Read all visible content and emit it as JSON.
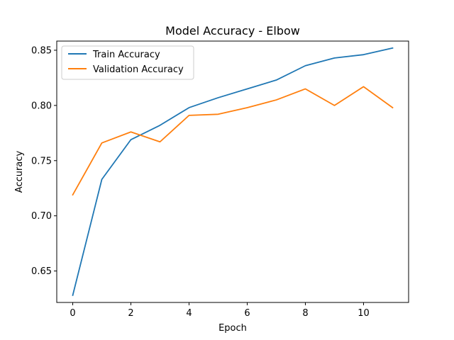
{
  "chart_data": {
    "type": "line",
    "title": "Model Accuracy - Elbow",
    "xlabel": "Epoch",
    "ylabel": "Accuracy",
    "x": [
      0,
      1,
      2,
      3,
      4,
      5,
      6,
      7,
      8,
      9,
      10,
      11
    ],
    "xlim": [
      -0.55,
      11.55
    ],
    "ylim": [
      0.6215,
      0.8583
    ],
    "xticks": [
      0,
      2,
      4,
      6,
      8,
      10
    ],
    "xtick_labels": [
      "0",
      "2",
      "4",
      "6",
      "8",
      "10"
    ],
    "yticks": [
      0.65,
      0.7,
      0.75,
      0.8,
      0.85
    ],
    "ytick_labels": [
      "0.65",
      "0.70",
      "0.75",
      "0.80",
      "0.85"
    ],
    "grid": false,
    "legend_position": "upper-left",
    "series": [
      {
        "name": "Train Accuracy",
        "color": "#1f77b4",
        "values": [
          0.628,
          0.733,
          0.769,
          0.782,
          0.798,
          0.807,
          0.815,
          0.823,
          0.836,
          0.843,
          0.846,
          0.852
        ]
      },
      {
        "name": "Validation Accuracy",
        "color": "#ff7f0e",
        "values": [
          0.719,
          0.766,
          0.776,
          0.767,
          0.791,
          0.792,
          0.798,
          0.805,
          0.815,
          0.8,
          0.817,
          0.798
        ]
      }
    ]
  }
}
